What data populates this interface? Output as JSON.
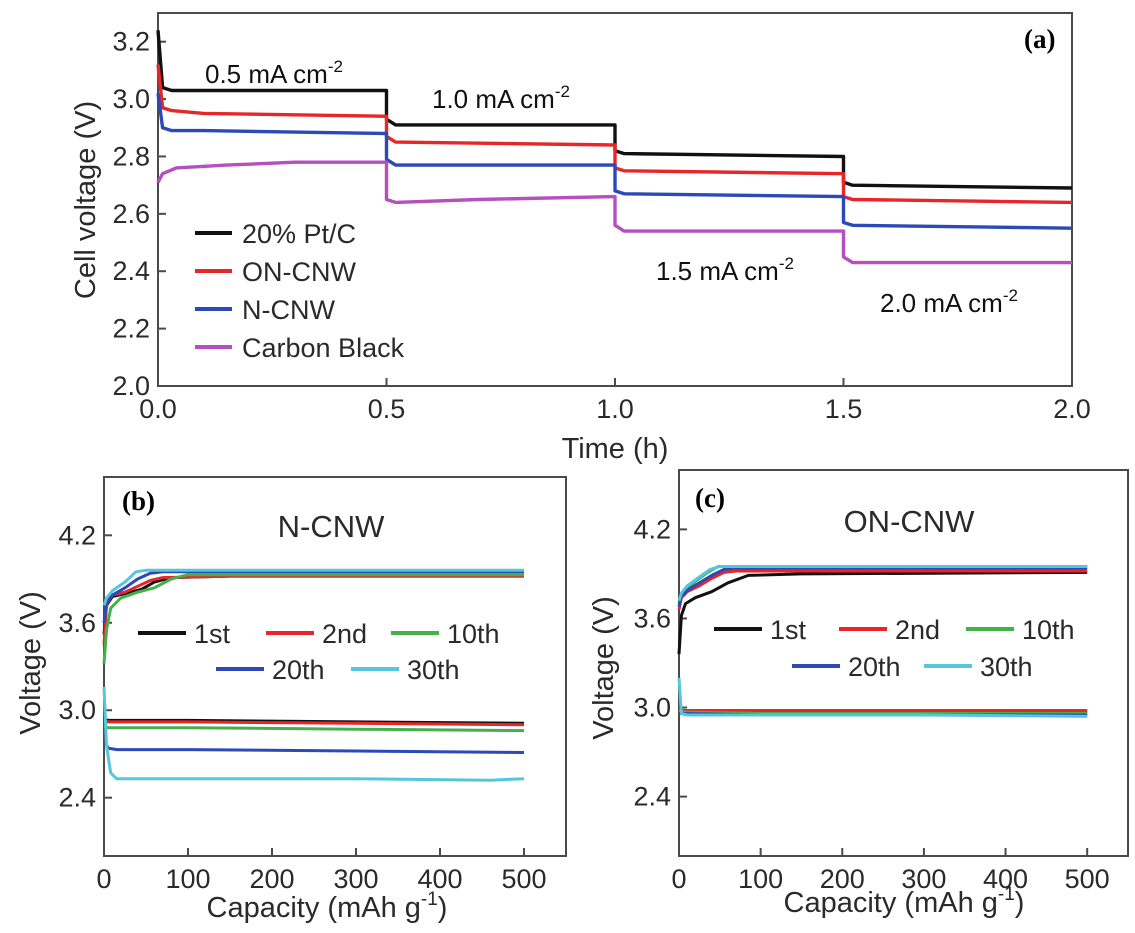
{
  "colors": {
    "black": "#111111",
    "red": "#e8262a",
    "blue": "#2b49b8",
    "magenta": "#b64fc0",
    "green": "#45b04a",
    "cyan": "#55c6dc"
  },
  "chart_data": [
    {
      "panel": "(a)",
      "type": "line",
      "xlabel": "Time (h)",
      "ylabel": "Cell voltage (V)",
      "xlim": [
        0,
        2.0
      ],
      "ylim": [
        2.0,
        3.3
      ],
      "xticks": [
        "0.0",
        "0.5",
        "1.0",
        "1.5",
        "2.0"
      ],
      "yticks": [
        "2.0",
        "2.2",
        "2.4",
        "2.6",
        "2.8",
        "3.0",
        "3.2"
      ],
      "legend_position": "lower-left",
      "annotations": [
        {
          "text": "0.5 mA cm",
          "sup": "-2"
        },
        {
          "text": "1.0 mA cm",
          "sup": "-2"
        },
        {
          "text": "1.5 mA cm",
          "sup": "-2"
        },
        {
          "text": "2.0 mA cm",
          "sup": "-2"
        }
      ],
      "series": [
        {
          "name": "20% Pt/C",
          "color": "#111111",
          "x": [
            0,
            0.01,
            0.03,
            0.1,
            0.5,
            0.5,
            0.52,
            1.0,
            1.0,
            1.02,
            1.5,
            1.5,
            1.52,
            2.0
          ],
          "y": [
            3.24,
            3.04,
            3.03,
            3.03,
            3.03,
            2.93,
            2.91,
            2.91,
            2.82,
            2.81,
            2.8,
            2.71,
            2.7,
            2.69
          ]
        },
        {
          "name": "ON-CNW",
          "color": "#e8262a",
          "x": [
            0,
            0.01,
            0.03,
            0.1,
            0.5,
            0.5,
            0.52,
            1.0,
            1.0,
            1.02,
            1.5,
            1.5,
            1.52,
            2.0
          ],
          "y": [
            3.12,
            2.97,
            2.96,
            2.95,
            2.94,
            2.87,
            2.85,
            2.84,
            2.76,
            2.75,
            2.74,
            2.66,
            2.65,
            2.64
          ]
        },
        {
          "name": "N-CNW",
          "color": "#2b49b8",
          "x": [
            0,
            0.01,
            0.03,
            0.1,
            0.5,
            0.5,
            0.52,
            1.0,
            1.0,
            1.02,
            1.5,
            1.5,
            1.52,
            2.0
          ],
          "y": [
            3.02,
            2.9,
            2.89,
            2.89,
            2.88,
            2.79,
            2.77,
            2.77,
            2.68,
            2.67,
            2.66,
            2.57,
            2.56,
            2.55
          ]
        },
        {
          "name": "Carbon Black",
          "color": "#b64fc0",
          "x": [
            0,
            0.01,
            0.04,
            0.15,
            0.3,
            0.5,
            0.5,
            0.52,
            0.7,
            1.0,
            1.0,
            1.02,
            1.5,
            1.5,
            1.52,
            2.0
          ],
          "y": [
            2.71,
            2.74,
            2.76,
            2.77,
            2.78,
            2.78,
            2.65,
            2.64,
            2.65,
            2.66,
            2.56,
            2.54,
            2.54,
            2.45,
            2.43,
            2.43
          ]
        }
      ]
    },
    {
      "panel": "(b)",
      "type": "line",
      "title": "N-CNW",
      "xlabel": "Capacity (mAh g",
      "xlabel_sup": "-1",
      "xlabel_end": ")",
      "ylabel": "Voltage (V)",
      "xlim": [
        0,
        550
      ],
      "ylim": [
        2.0,
        4.6
      ],
      "xticks": [
        "0",
        "100",
        "200",
        "300",
        "400",
        "500"
      ],
      "yticks": [
        "2.4",
        "3.0",
        "3.6",
        "4.2"
      ],
      "legend_position": "middle",
      "legend": [
        "1st",
        "2nd",
        "10th",
        "20th",
        "30th"
      ],
      "series": [
        {
          "name": "1st",
          "color": "#111111",
          "role": "charge",
          "x": [
            0,
            3,
            10,
            25,
            45,
            60,
            80,
            150,
            500
          ],
          "y": [
            3.52,
            3.72,
            3.78,
            3.8,
            3.83,
            3.88,
            3.91,
            3.92,
            3.92
          ]
        },
        {
          "name": "1st",
          "color": "#111111",
          "role": "discharge",
          "x": [
            0,
            5,
            20,
            100,
            300,
            500
          ],
          "y": [
            2.94,
            2.93,
            2.93,
            2.93,
            2.92,
            2.91
          ]
        },
        {
          "name": "2nd",
          "color": "#e8262a",
          "role": "charge",
          "x": [
            0,
            3,
            10,
            25,
            40,
            55,
            70,
            150,
            500
          ],
          "y": [
            3.45,
            3.73,
            3.79,
            3.81,
            3.85,
            3.89,
            3.91,
            3.92,
            3.92
          ]
        },
        {
          "name": "2nd",
          "color": "#e8262a",
          "role": "discharge",
          "x": [
            0,
            5,
            20,
            100,
            300,
            500
          ],
          "y": [
            2.93,
            2.92,
            2.92,
            2.92,
            2.91,
            2.9
          ]
        },
        {
          "name": "10th",
          "color": "#45b04a",
          "role": "charge",
          "x": [
            0,
            3,
            8,
            20,
            40,
            60,
            80,
            100,
            500
          ],
          "y": [
            3.32,
            3.55,
            3.7,
            3.77,
            3.81,
            3.84,
            3.9,
            3.93,
            3.93
          ]
        },
        {
          "name": "10th",
          "color": "#45b04a",
          "role": "discharge",
          "x": [
            0,
            5,
            20,
            100,
            300,
            500
          ],
          "y": [
            2.89,
            2.88,
            2.88,
            2.88,
            2.87,
            2.86
          ]
        },
        {
          "name": "20th",
          "color": "#2b49b8",
          "role": "charge",
          "x": [
            0,
            3,
            10,
            25,
            40,
            55,
            70,
            500
          ],
          "y": [
            3.6,
            3.74,
            3.79,
            3.84,
            3.9,
            3.94,
            3.95,
            3.95
          ]
        },
        {
          "name": "20th",
          "color": "#2b49b8",
          "role": "discharge",
          "x": [
            0,
            5,
            15,
            100,
            300,
            500
          ],
          "y": [
            2.79,
            2.74,
            2.73,
            2.73,
            2.72,
            2.71
          ]
        },
        {
          "name": "30th",
          "color": "#55c6dc",
          "role": "charge",
          "x": [
            0,
            3,
            10,
            25,
            38,
            50,
            500
          ],
          "y": [
            3.72,
            3.77,
            3.82,
            3.88,
            3.95,
            3.96,
            3.96
          ]
        },
        {
          "name": "30th",
          "color": "#55c6dc",
          "role": "discharge",
          "x": [
            0,
            3,
            8,
            15,
            100,
            300,
            460,
            500
          ],
          "y": [
            3.16,
            2.76,
            2.57,
            2.53,
            2.53,
            2.53,
            2.52,
            2.53
          ]
        }
      ]
    },
    {
      "panel": "(c)",
      "type": "line",
      "title": "ON-CNW",
      "xlabel": "Capacity (mAh g",
      "xlabel_sup": "-1",
      "xlabel_end": ")",
      "ylabel": "Voltage (V)",
      "xlim": [
        0,
        550
      ],
      "ylim": [
        2.0,
        4.6
      ],
      "xticks": [
        "0",
        "100",
        "200",
        "300",
        "400",
        "500"
      ],
      "yticks": [
        "2.4",
        "3.0",
        "3.6",
        "4.2"
      ],
      "legend_position": "middle",
      "legend": [
        "1st",
        "2nd",
        "10th",
        "20th",
        "30th"
      ],
      "series": [
        {
          "name": "1st",
          "color": "#111111",
          "role": "charge",
          "x": [
            0,
            3,
            8,
            20,
            40,
            60,
            85,
            150,
            500
          ],
          "y": [
            3.36,
            3.62,
            3.7,
            3.74,
            3.78,
            3.84,
            3.89,
            3.9,
            3.91
          ]
        },
        {
          "name": "1st",
          "color": "#111111",
          "role": "discharge",
          "x": [
            0,
            5,
            100,
            300,
            500
          ],
          "y": [
            2.99,
            2.98,
            2.98,
            2.98,
            2.97
          ]
        },
        {
          "name": "2nd",
          "color": "#e8262a",
          "role": "charge",
          "x": [
            0,
            3,
            10,
            25,
            40,
            55,
            70,
            500
          ],
          "y": [
            3.66,
            3.74,
            3.78,
            3.82,
            3.87,
            3.91,
            3.92,
            3.92
          ]
        },
        {
          "name": "2nd",
          "color": "#e8262a",
          "role": "discharge",
          "x": [
            0,
            5,
            100,
            300,
            500
          ],
          "y": [
            2.99,
            2.98,
            2.98,
            2.98,
            2.98
          ]
        },
        {
          "name": "10th",
          "color": "#45b04a",
          "role": "charge",
          "x": [
            0,
            3,
            10,
            20,
            35,
            48,
            60,
            500
          ],
          "y": [
            3.7,
            3.76,
            3.8,
            3.85,
            3.91,
            3.95,
            3.95,
            3.95
          ]
        },
        {
          "name": "10th",
          "color": "#45b04a",
          "role": "discharge",
          "x": [
            0,
            5,
            100,
            300,
            500
          ],
          "y": [
            2.97,
            2.97,
            2.96,
            2.96,
            2.96
          ]
        },
        {
          "name": "20th",
          "color": "#2b49b8",
          "role": "charge",
          "x": [
            0,
            3,
            10,
            25,
            40,
            55,
            70,
            500
          ],
          "y": [
            3.68,
            3.75,
            3.79,
            3.84,
            3.89,
            3.93,
            3.94,
            3.94
          ]
        },
        {
          "name": "20th",
          "color": "#2b49b8",
          "role": "discharge",
          "x": [
            0,
            5,
            100,
            300,
            500
          ],
          "y": [
            2.96,
            2.96,
            2.95,
            2.95,
            2.95
          ]
        },
        {
          "name": "30th",
          "color": "#55c6dc",
          "role": "charge",
          "x": [
            0,
            3,
            10,
            25,
            38,
            50,
            500
          ],
          "y": [
            3.72,
            3.77,
            3.82,
            3.88,
            3.93,
            3.95,
            3.95
          ]
        },
        {
          "name": "30th",
          "color": "#55c6dc",
          "role": "discharge",
          "x": [
            0,
            3,
            10,
            100,
            300,
            500
          ],
          "y": [
            3.2,
            2.96,
            2.95,
            2.95,
            2.95,
            2.94
          ]
        }
      ]
    }
  ]
}
